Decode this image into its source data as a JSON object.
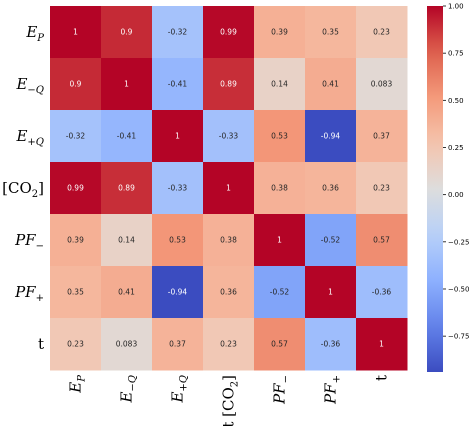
{
  "chart_data": {
    "type": "heatmap",
    "row_labels": [
      {
        "text": "E",
        "sub": "P",
        "italic": true
      },
      {
        "text": "E",
        "sub": "−Q",
        "italic": true
      },
      {
        "text": "E",
        "sub": "+Q",
        "italic": true
      },
      {
        "text": "t [CO",
        "sub": "2",
        "suffix": "]",
        "italic": false
      },
      {
        "text": "PF",
        "sub": "−",
        "italic": true
      },
      {
        "text": "PF",
        "sub": "+",
        "italic": true
      },
      {
        "text": "t",
        "sub": "",
        "italic": false
      }
    ],
    "col_labels": [
      {
        "text": "E",
        "sub": "P",
        "italic": true
      },
      {
        "text": "E",
        "sub": "−Q",
        "italic": true
      },
      {
        "text": "E",
        "sub": "+Q",
        "italic": true
      },
      {
        "text": "t [CO",
        "sub": "2",
        "suffix": "]",
        "italic": false
      },
      {
        "text": "PF",
        "sub": "−",
        "italic": true
      },
      {
        "text": "PF",
        "sub": "+",
        "italic": true
      },
      {
        "text": "t",
        "sub": "",
        "italic": false
      }
    ],
    "values": [
      [
        1,
        0.9,
        -0.32,
        0.99,
        0.39,
        0.35,
        0.23
      ],
      [
        0.9,
        1,
        -0.41,
        0.89,
        0.14,
        0.41,
        0.083
      ],
      [
        -0.32,
        -0.41,
        1,
        -0.33,
        0.53,
        -0.94,
        0.37
      ],
      [
        0.99,
        0.89,
        -0.33,
        1,
        0.38,
        0.36,
        0.23
      ],
      [
        0.39,
        0.14,
        0.53,
        0.38,
        1,
        -0.52,
        0.57
      ],
      [
        0.35,
        0.41,
        -0.94,
        0.36,
        -0.52,
        1,
        -0.36
      ],
      [
        0.23,
        0.083,
        0.37,
        0.23,
        0.57,
        -0.36,
        1
      ]
    ],
    "value_labels": [
      [
        "1",
        "0.9",
        "-0.32",
        "0.99",
        "0.39",
        "0.35",
        "0.23"
      ],
      [
        "0.9",
        "1",
        "-0.41",
        "0.89",
        "0.14",
        "0.41",
        "0.083"
      ],
      [
        "-0.32",
        "-0.41",
        "1",
        "-0.33",
        "0.53",
        "-0.94",
        "0.37"
      ],
      [
        "0.99",
        "0.89",
        "-0.33",
        "1",
        "0.38",
        "0.36",
        "0.23"
      ],
      [
        "0.39",
        "0.14",
        "0.53",
        "0.38",
        "1",
        "-0.52",
        "0.57"
      ],
      [
        "0.35",
        "0.41",
        "-0.94",
        "0.36",
        "-0.52",
        "1",
        "-0.36"
      ],
      [
        "0.23",
        "0.083",
        "0.37",
        "0.23",
        "0.57",
        "-0.36",
        "1"
      ]
    ],
    "colorbar": {
      "colormap": "coolwarm",
      "range": [
        -0.94,
        1
      ],
      "ticks": [
        1.0,
        0.75,
        0.5,
        0.25,
        0.0,
        -0.25,
        -0.5,
        -0.75
      ],
      "tick_labels": [
        "1.00",
        "0.75",
        "0.50",
        "0.25",
        "0.00",
        "−0.25",
        "−0.50",
        "−0.75"
      ]
    }
  }
}
